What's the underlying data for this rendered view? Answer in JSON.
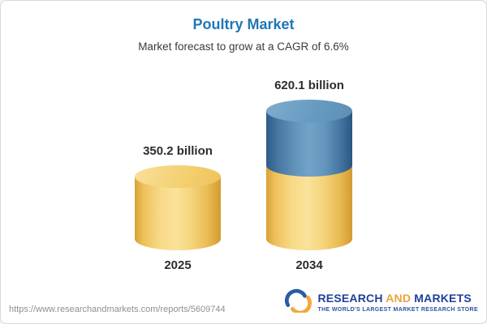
{
  "header": {
    "title": "Poultry Market",
    "subtitle": "Market forecast to grow at a CAGR of 6.6%"
  },
  "chart_data": {
    "type": "bar",
    "variant": "3d-cylinder",
    "title": "Poultry Market",
    "subtitle": "Market forecast to grow at a CAGR of 6.6%",
    "categories": [
      "2025",
      "2034"
    ],
    "values": [
      350.2,
      620.1
    ],
    "value_labels": [
      "350.2 billion",
      "620.1 billion"
    ],
    "unit": "billion",
    "cagr": "6.6%",
    "colors": {
      "bar_2025": "#F2CD6E",
      "bar_2034_bottom_segment": "#F2CD6E",
      "bar_2034_top_segment": "#5D8FB6",
      "title_text": "#1F77B6",
      "label_text": "#2D2D2D"
    },
    "legend": null,
    "grid": false
  },
  "footer": {
    "url": "https://www.researchandmarkets.com/reports/5609744",
    "logo": {
      "word1": "RESEARCH",
      "word2": "AND",
      "word3": "MARKETS",
      "tagline": "THE WORLD'S LARGEST MARKET RESEARCH STORE",
      "icon": "researchandmarkets-globe-icon"
    }
  }
}
